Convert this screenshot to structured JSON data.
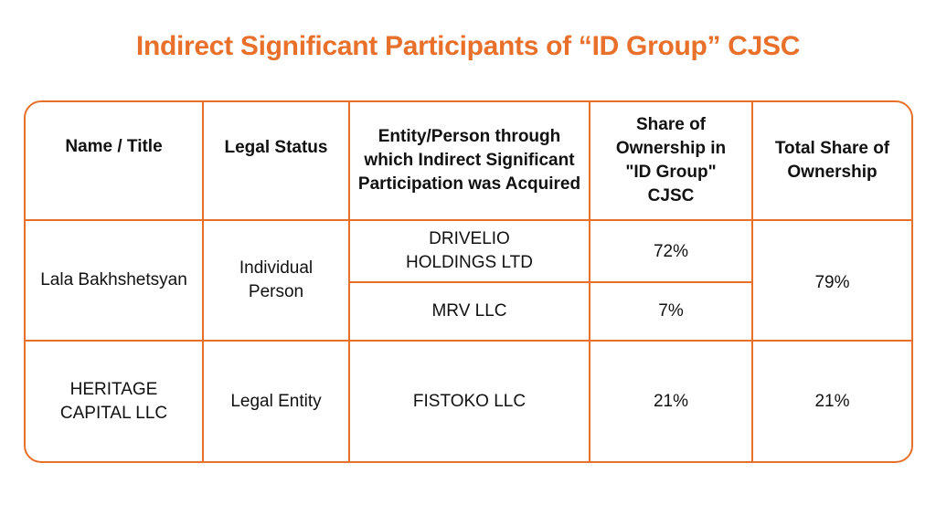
{
  "title": "Indirect Significant Participants of “ID Group” CJSC",
  "table": {
    "header": [
      "Name / Title",
      "Legal Status",
      "Entity/Person through which Indirect Significant Participation was Acquired",
      "Share of Ownership in \"ID Group\" CJSC",
      "Total Share of Ownership"
    ],
    "rows": [
      {
        "name": "Lala Bakhshetsyan",
        "legal_status": "Individual Person",
        "through": [
          {
            "entity": "DRIVELIO HOLDINGS LTD",
            "share": "72%"
          },
          {
            "entity": "MRV LLC",
            "share": "7%"
          }
        ],
        "total_share": "79%"
      },
      {
        "name": "HERITAGE CAPITAL LLC",
        "legal_status": "Legal Entity",
        "through": [
          {
            "entity": "FISTOKO LLC",
            "share": "21%"
          }
        ],
        "total_share": "21%"
      }
    ]
  }
}
